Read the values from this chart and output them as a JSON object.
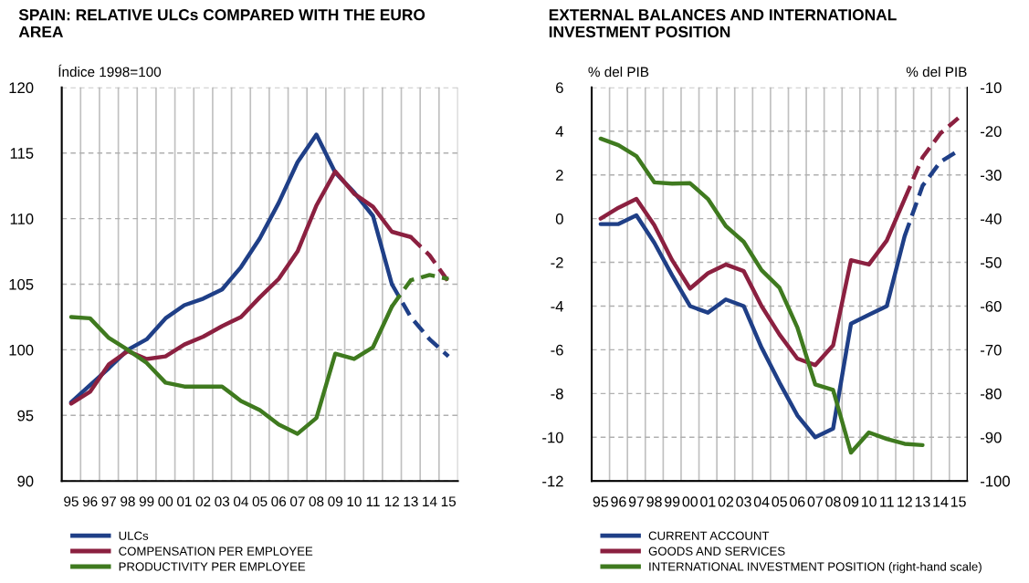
{
  "chart_data": [
    {
      "type": "line",
      "title": "SPAIN: RELATIVE ULCs COMPARED WITH THE EURO AREA",
      "ylabel": "Índice 1998=100",
      "categories": [
        "95",
        "96",
        "97",
        "98",
        "99",
        "00",
        "01",
        "02",
        "03",
        "04",
        "05",
        "06",
        "07",
        "08",
        "09",
        "10",
        "11",
        "12",
        "13",
        "14",
        "15"
      ],
      "ylim": [
        90,
        120
      ],
      "yticks": [
        90,
        95,
        100,
        105,
        110,
        115,
        120
      ],
      "grid": true,
      "legend": "bottom",
      "line_style": "solid",
      "series": [
        {
          "name": "ULCs",
          "color": "#1f3f87",
          "values": [
            96.0,
            97.3,
            98.6,
            100.0,
            100.8,
            102.4,
            103.4,
            103.9,
            104.6,
            106.3,
            108.5,
            111.2,
            114.3,
            116.4,
            113.5,
            112.0,
            110.2,
            105.0,
            null,
            null,
            null
          ]
        },
        {
          "name": "COMPENSATION PER EMPLOYEE",
          "color": "#8b2040",
          "values": [
            95.9,
            96.8,
            98.9,
            99.9,
            99.3,
            99.5,
            100.4,
            101.0,
            101.8,
            102.5,
            104.0,
            105.4,
            107.5,
            111.0,
            113.6,
            111.9,
            110.9,
            109.0,
            108.6,
            null,
            null
          ]
        },
        {
          "name": "PRODUCTIVITY PER EMPLOYEE",
          "color": "#3f7a1f",
          "values": [
            102.5,
            102.4,
            100.9,
            100.0,
            99.0,
            97.5,
            97.2,
            97.2,
            97.2,
            96.1,
            95.4,
            94.3,
            93.6,
            94.8,
            99.7,
            99.3,
            100.2,
            103.3,
            null,
            null,
            null
          ]
        },
        {
          "color": "#1f3f87",
          "line_style": "dashed",
          "values": [
            null,
            null,
            null,
            null,
            null,
            null,
            null,
            null,
            null,
            null,
            null,
            null,
            null,
            null,
            null,
            null,
            null,
            105.0,
            102.5,
            100.8,
            99.5
          ]
        },
        {
          "color": "#8b2040",
          "line_style": "dashed",
          "values": [
            null,
            null,
            null,
            null,
            null,
            null,
            null,
            null,
            null,
            null,
            null,
            null,
            null,
            null,
            null,
            null,
            null,
            null,
            108.6,
            107.2,
            105.2
          ]
        },
        {
          "color": "#3f7a1f",
          "line_style": "dashed",
          "values": [
            null,
            null,
            null,
            null,
            null,
            null,
            null,
            null,
            null,
            null,
            null,
            null,
            null,
            null,
            null,
            null,
            null,
            103.3,
            105.3,
            105.7,
            105.4
          ]
        }
      ]
    },
    {
      "type": "line",
      "title": "EXTERNAL BALANCES AND INTERNATIONAL INVESTMENT POSITION",
      "ylabel": "% del PIB",
      "y2label": "% del PIB",
      "categories": [
        "95",
        "96",
        "97",
        "98",
        "99",
        "00",
        "01",
        "02",
        "03",
        "04",
        "05",
        "06",
        "07",
        "08",
        "09",
        "10",
        "11",
        "12",
        "13",
        "14",
        "15"
      ],
      "ylim": [
        -12,
        6
      ],
      "yticks": [
        -12,
        -10,
        -8,
        -6,
        -4,
        -2,
        0,
        2,
        4,
        6
      ],
      "y2lim": [
        -100,
        -10
      ],
      "y2ticks": [
        -100,
        -90,
        -80,
        -70,
        -60,
        -50,
        -40,
        -30,
        -20,
        -10
      ],
      "grid": true,
      "legend": "bottom",
      "line_style": "solid",
      "series": [
        {
          "name": "CURRENT ACCOUNT",
          "color": "#1f3f87",
          "values": [
            -0.25,
            -0.25,
            0.15,
            -1.1,
            -2.6,
            -4.0,
            -4.3,
            -3.7,
            -4.0,
            -5.9,
            -7.5,
            -9.0,
            -10.0,
            -9.6,
            -4.8,
            -4.4,
            -4.0,
            -0.8,
            null,
            null,
            null
          ]
        },
        {
          "name": "GOODS AND SERVICES",
          "color": "#8b2040",
          "values": [
            0.0,
            0.5,
            0.9,
            -0.3,
            -1.9,
            -3.2,
            -2.5,
            -2.1,
            -2.4,
            -4.0,
            -5.3,
            -6.4,
            -6.7,
            -5.8,
            -1.9,
            -2.1,
            -1.0,
            0.9,
            null,
            null,
            null
          ]
        },
        {
          "name": "INTERNATIONAL INVESTMENT POSITION (right-hand scale)",
          "color": "#3f7a1f",
          "axis": "y2",
          "values": [
            -21.7,
            -23.2,
            -25.7,
            -31.7,
            -32.0,
            -31.9,
            -35.5,
            -41.7,
            -45.3,
            -51.8,
            -55.8,
            -64.9,
            -77.9,
            -79.2,
            -93.5,
            -88.9,
            -90.4,
            -91.5,
            -91.8,
            null,
            null
          ]
        },
        {
          "color": "#1f3f87",
          "line_style": "dashed",
          "values": [
            null,
            null,
            null,
            null,
            null,
            null,
            null,
            null,
            null,
            null,
            null,
            null,
            null,
            null,
            null,
            null,
            null,
            -0.8,
            1.5,
            2.6,
            3.1
          ]
        },
        {
          "color": "#8b2040",
          "line_style": "dashed",
          "values": [
            null,
            null,
            null,
            null,
            null,
            null,
            null,
            null,
            null,
            null,
            null,
            null,
            null,
            null,
            null,
            null,
            null,
            0.9,
            2.8,
            3.9,
            4.6
          ]
        }
      ]
    }
  ]
}
